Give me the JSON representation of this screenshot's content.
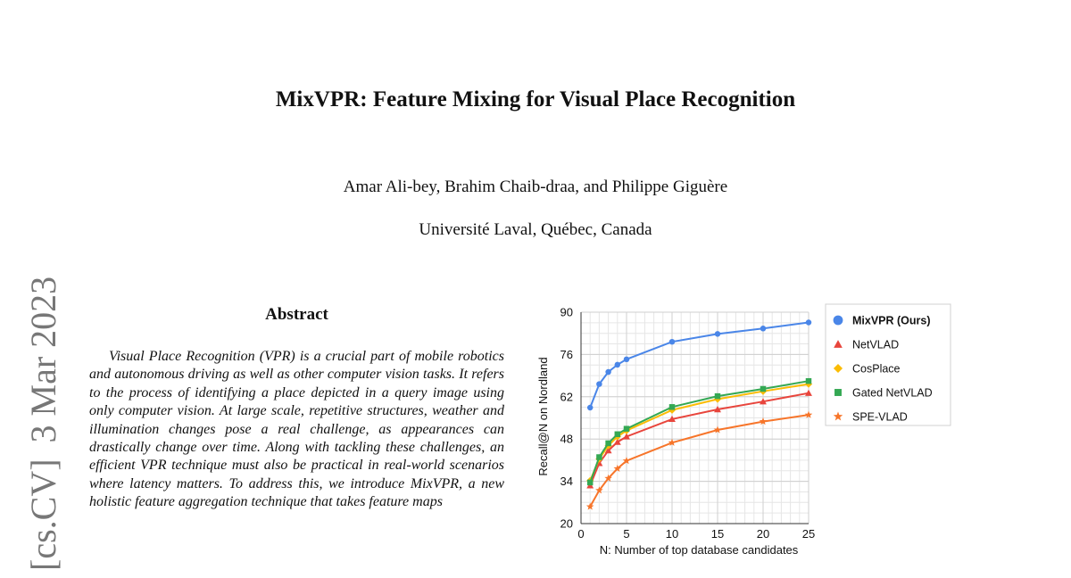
{
  "side_identifier": {
    "category": "[cs.CV]",
    "date": "3 Mar 2023"
  },
  "paper": {
    "title": "MixVPR: Feature Mixing for Visual Place Recognition",
    "authors": "Amar Ali-bey, Brahim Chaib-draa, and Philippe Giguère",
    "affiliation": "Université Laval, Québec, Canada"
  },
  "abstract": {
    "heading": "Abstract",
    "text": "Visual Place Recognition (VPR) is a crucial part of mobile robotics and autonomous driving as well as other computer vision tasks. It refers to the process of identifying a place depicted in a query image using only computer vision. At large scale, repetitive structures, weather and illumination changes pose a real challenge, as appearances can drastically change over time. Along with tackling these challenges, an efficient VPR technique must also be practical in real-world scenarios where latency matters. To address this, we introduce MixVPR, a new holistic feature aggregation technique that takes feature maps"
  },
  "chart_data": {
    "type": "line",
    "title": "",
    "xlabel": "N: Number of top database candidates",
    "ylabel": "Recall@N on Nordland",
    "xlim": [
      0,
      25
    ],
    "ylim": [
      20,
      90
    ],
    "xticks": [
      0,
      5,
      10,
      15,
      20,
      25
    ],
    "yticks": [
      20,
      34,
      48,
      62,
      76,
      90
    ],
    "grid": true,
    "legend_position": "right",
    "series": [
      {
        "name": "MixVPR (Ours)",
        "color": "#4a86e8",
        "marker": "circle",
        "x": [
          1,
          2,
          3,
          4,
          5,
          10,
          15,
          20,
          25
        ],
        "y": [
          58.4,
          66.2,
          70.2,
          72.6,
          74.4,
          80.2,
          82.8,
          84.6,
          86.6
        ]
      },
      {
        "name": "NetVLAD",
        "color": "#e8453c",
        "marker": "triangle",
        "x": [
          1,
          2,
          3,
          4,
          5,
          10,
          15,
          20,
          25
        ],
        "y": [
          32.6,
          40.0,
          44.2,
          47.0,
          48.8,
          54.6,
          57.8,
          60.4,
          63.2
        ]
      },
      {
        "name": "CosPlace",
        "color": "#fbbc04",
        "marker": "diamond",
        "x": [
          1,
          2,
          3,
          4,
          5,
          10,
          15,
          20,
          25
        ],
        "y": [
          34.2,
          41.4,
          45.8,
          48.8,
          50.8,
          57.6,
          61.2,
          63.8,
          66.2
        ]
      },
      {
        "name": "Gated NetVLAD",
        "color": "#34a853",
        "marker": "square",
        "x": [
          1,
          2,
          3,
          4,
          5,
          10,
          15,
          20,
          25
        ],
        "y": [
          33.6,
          42.0,
          46.6,
          49.6,
          51.4,
          58.6,
          62.2,
          64.6,
          67.2
        ]
      },
      {
        "name": "SPE-VLAD",
        "color": "#f7752a",
        "marker": "star",
        "x": [
          1,
          2,
          3,
          4,
          5,
          10,
          15,
          20,
          25
        ],
        "y": [
          25.6,
          31.0,
          35.0,
          38.2,
          40.8,
          46.8,
          51.0,
          53.8,
          56.0
        ]
      }
    ]
  }
}
